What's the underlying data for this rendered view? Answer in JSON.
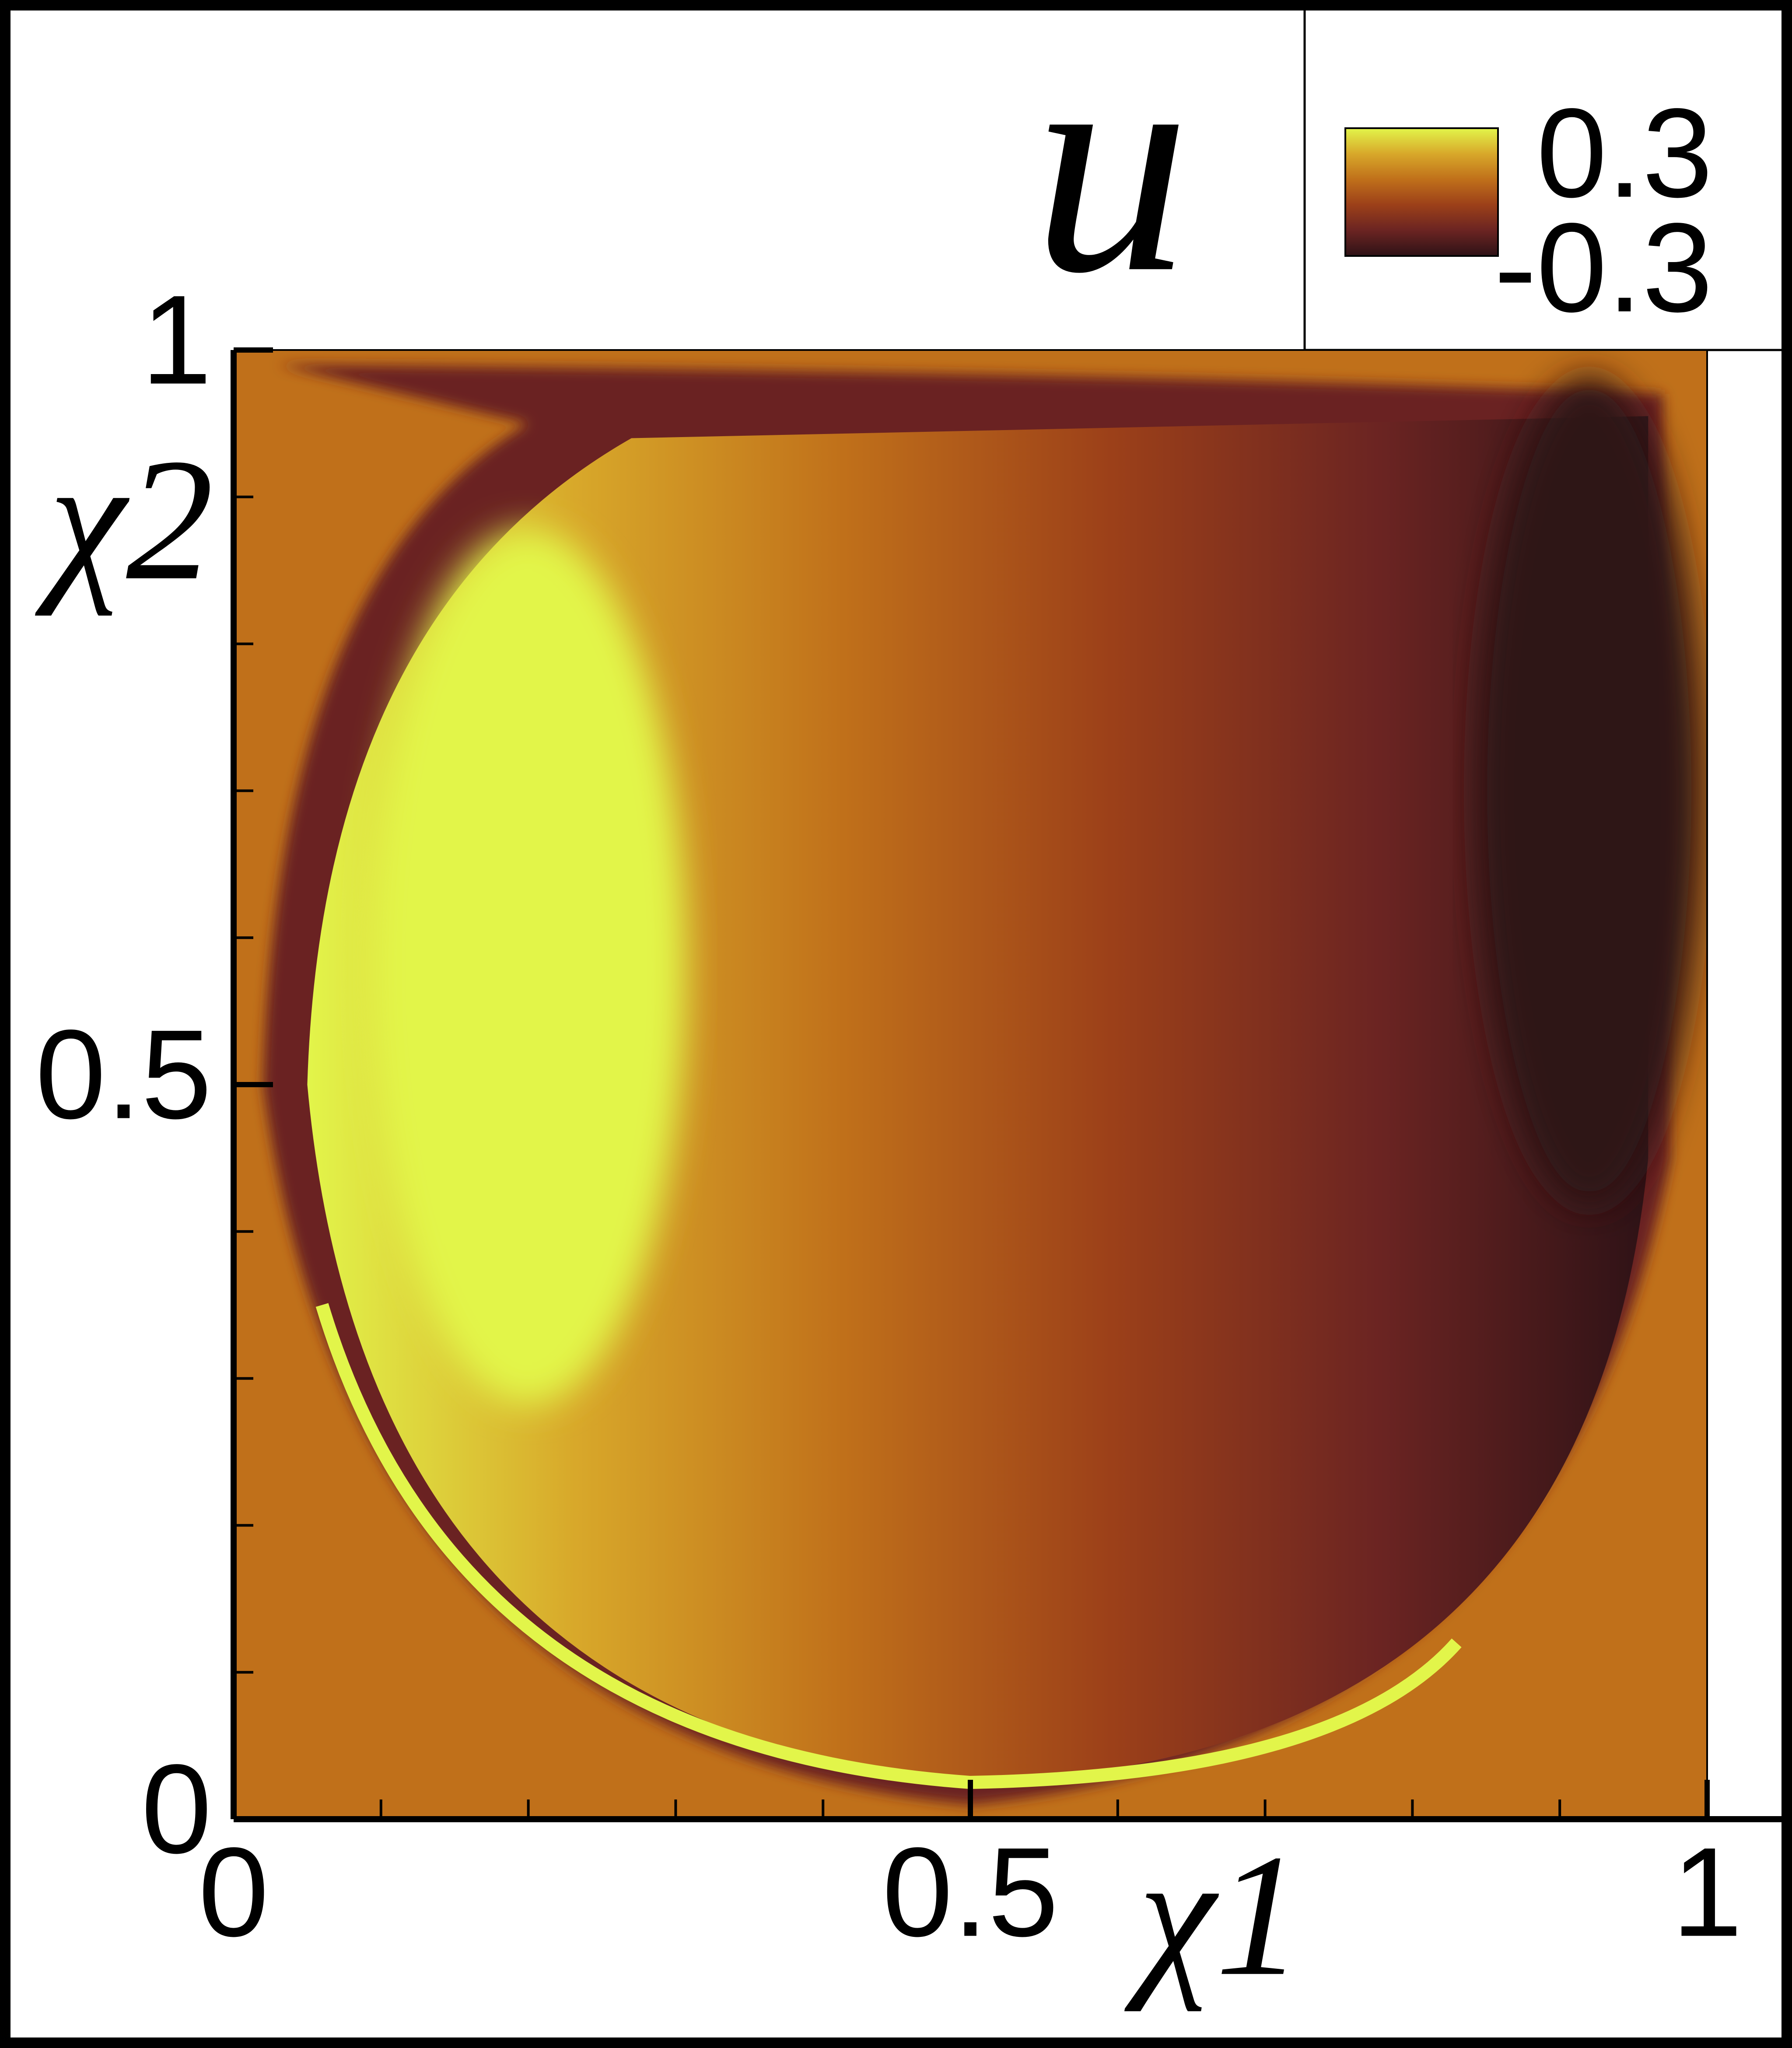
{
  "chart_data": {
    "type": "contour",
    "title": "u",
    "x_label": "χ1",
    "y_label": "χ2",
    "xlim": [
      0,
      1
    ],
    "ylim": [
      0,
      1
    ],
    "xticks": [
      0,
      0.5,
      1
    ],
    "yticks": [
      0,
      0.5,
      1
    ],
    "xminorticks": [
      0.1,
      0.2,
      0.3,
      0.4,
      0.6,
      0.7,
      0.8,
      0.9
    ],
    "yminorticks": [
      0.1,
      0.2,
      0.3,
      0.4,
      0.6,
      0.7,
      0.8,
      0.9
    ],
    "clim": [
      -0.3,
      0.3
    ],
    "cticks": [
      0.3,
      -0.3
    ],
    "colors": [
      "#2e1216",
      "#6b2422",
      "#9c4019",
      "#c0701a",
      "#d8a82a",
      "#e2f54a"
    ]
  }
}
